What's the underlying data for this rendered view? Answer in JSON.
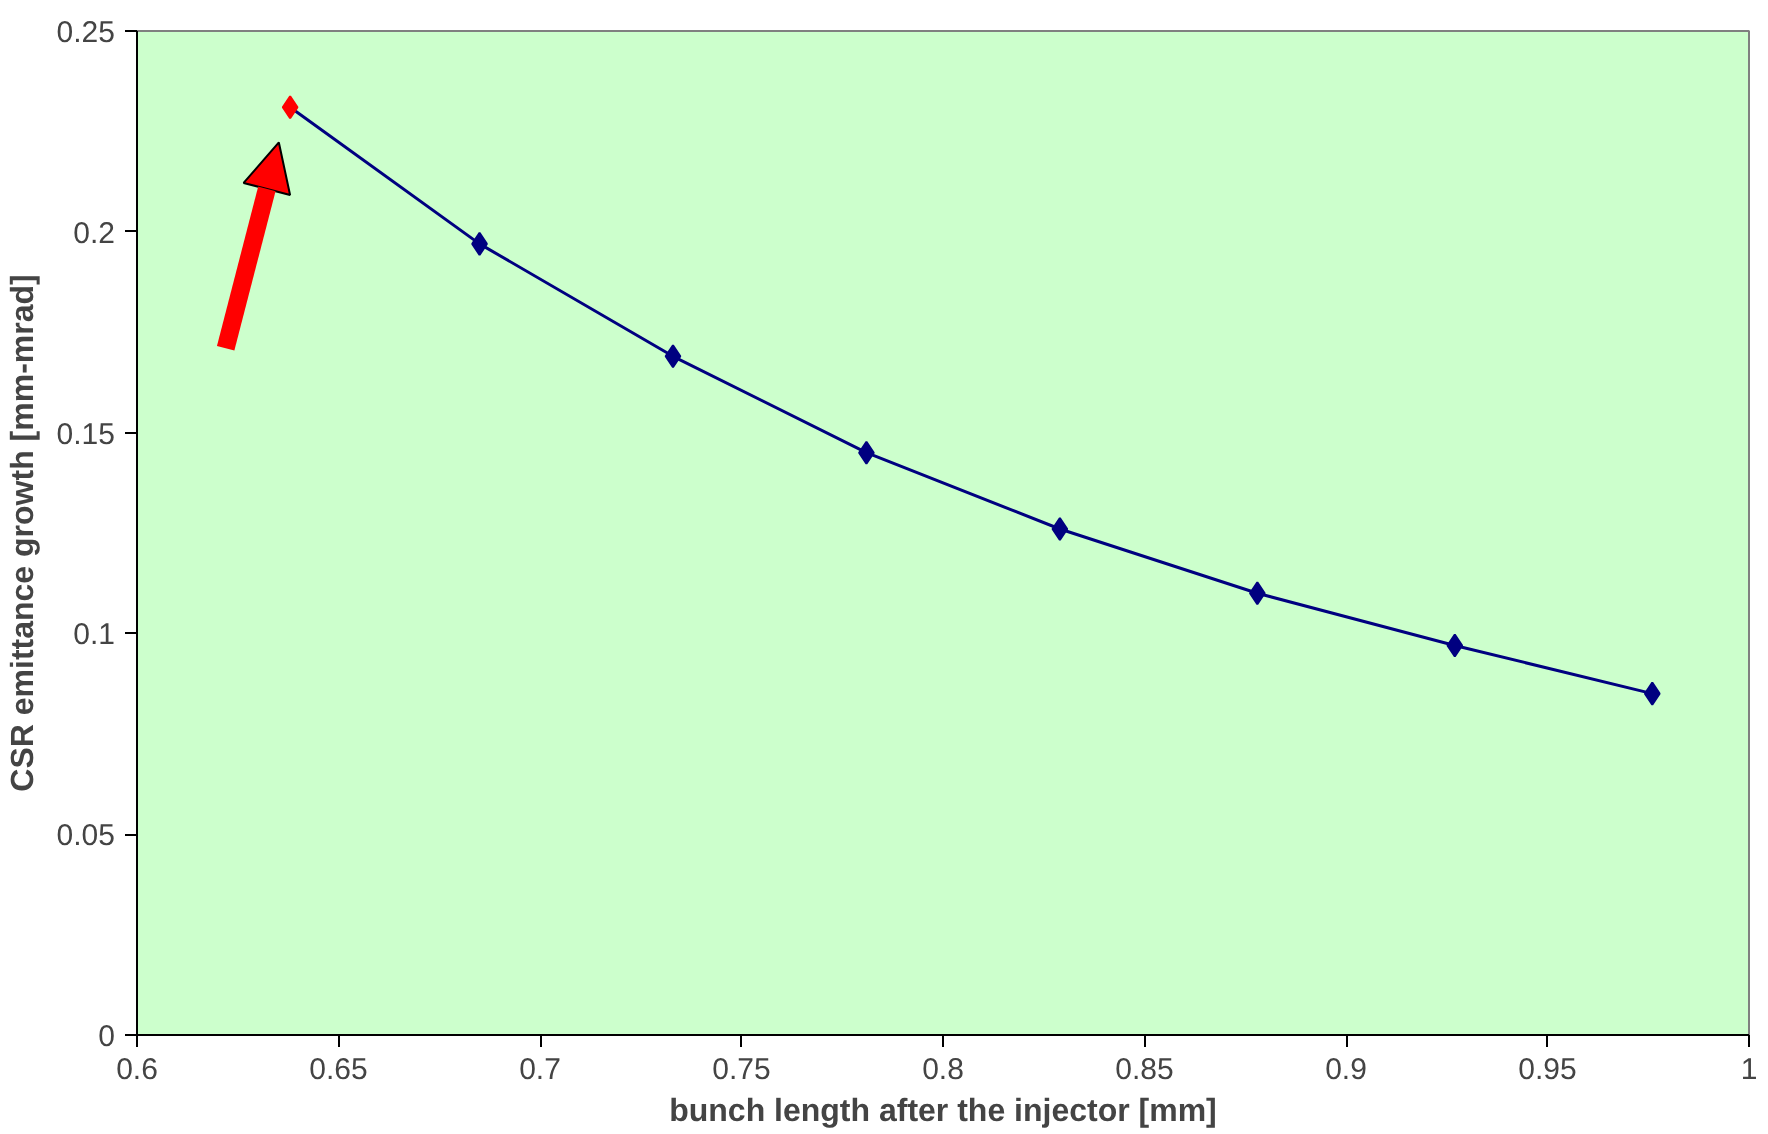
{
  "chart_data": {
    "type": "line",
    "xlabel": "bunch length after the injector [mm]",
    "ylabel": "CSR emittance growth [mm-mrad]",
    "x": [
      0.638,
      0.685,
      0.733,
      0.781,
      0.829,
      0.878,
      0.927,
      0.976
    ],
    "series": [
      {
        "color": "#000080",
        "colors": [
          "#ff0000",
          "#000080",
          "#000080",
          "#000080",
          "#000080",
          "#000080",
          "#000080",
          "#000080"
        ],
        "values": [
          0.231,
          0.197,
          0.169,
          0.145,
          0.126,
          0.11,
          0.097,
          0.085
        ]
      }
    ],
    "xlim": [
      0.6,
      1
    ],
    "xticks": [
      0.6,
      0.65,
      0.7,
      0.75,
      0.8,
      0.85,
      0.9,
      0.95,
      1
    ],
    "ylim": [
      0,
      0.25
    ],
    "yticks": [
      0,
      0.05,
      0.1,
      0.15,
      0.2,
      0.25
    ],
    "grid": false,
    "marker": "diamond",
    "line_style": "solid"
  }
}
